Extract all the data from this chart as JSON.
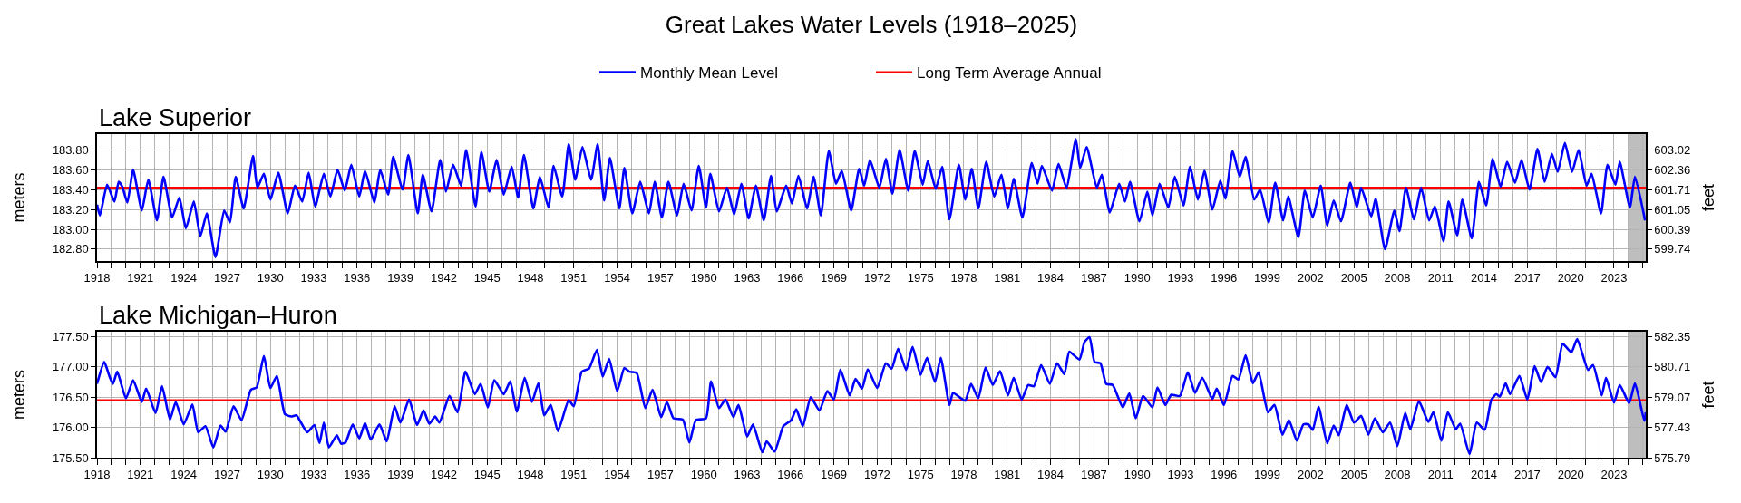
{
  "chart_data": [
    {
      "type": "line",
      "title": "Great Lakes Water Levels (1918–2025)",
      "subtitle": "Lake Superior",
      "ylabel": "meters",
      "y2label": "feet",
      "x": [
        1918,
        1918.2,
        1918.7,
        1919.2,
        1919.5,
        1919.75,
        1920.1,
        1920.5,
        1921.1,
        1921.55,
        1922.15,
        1922.6,
        1923.2,
        1923.7,
        1924.15,
        1924.7,
        1925.15,
        1925.6,
        1926.2,
        1926.8,
        1927.2,
        1927.6,
        1928.15,
        1928.8,
        1929.1,
        1929.55,
        1930,
        1930.55,
        1931.2,
        1931.7,
        1932.2,
        1932.65,
        1933.1,
        1933.7,
        1934.15,
        1934.65,
        1935.15,
        1935.6,
        1936.15,
        1936.55,
        1937.2,
        1937.6,
        1938.15,
        1938.5,
        1939.15,
        1939.55,
        1940.2,
        1940.55,
        1941.15,
        1941.75,
        1942.15,
        1942.65,
        1943.2,
        1943.55,
        1944.2,
        1944.6,
        1945.15,
        1945.65,
        1946.15,
        1946.7,
        1947.15,
        1947.55,
        1948.2,
        1948.65,
        1949.25,
        1949.6,
        1950.2,
        1950.65,
        1951.1,
        1951.6,
        1952.2,
        1952.65,
        1953.1,
        1953.5,
        1954.15,
        1954.5,
        1955.05,
        1955.6,
        1956.2,
        1956.6,
        1957.1,
        1957.55,
        1958.15,
        1958.6,
        1959.15,
        1959.65,
        1960.15,
        1960.45,
        1961.05,
        1961.6,
        1962.1,
        1962.6,
        1963.1,
        1963.6,
        1964.15,
        1964.65,
        1965.05,
        1965.7,
        1966.1,
        1966.55,
        1967.15,
        1967.6,
        1968.1,
        1968.65,
        1969.15,
        1969.55,
        1970.2,
        1970.75,
        1971.1,
        1971.5,
        1972.15,
        1972.6,
        1973.05,
        1973.55,
        1974.15,
        1974.6,
        1975.15,
        1975.5,
        1976.05,
        1976.5,
        1977,
        1977.65,
        1978.1,
        1978.55,
        1979,
        1979.55,
        1980.1,
        1980.6,
        1981.05,
        1981.45,
        1982.05,
        1982.7,
        1983.1,
        1983.4,
        1984.1,
        1984.55,
        1985.1,
        1985.75,
        1986.05,
        1986.5,
        1987.2,
        1987.55,
        1988.1,
        1988.75,
        1989.15,
        1989.5,
        1990.15,
        1990.7,
        1991.05,
        1991.55,
        1992.15,
        1992.6,
        1993.2,
        1993.65,
        1994.2,
        1994.65,
        1995.2,
        1995.75,
        1996.1,
        1996.6,
        1997.1,
        1997.5,
        1998.1,
        1998.5,
        1999.1,
        1999.55,
        2000.1,
        2000.45,
        2001.15,
        2001.6,
        2002.15,
        2002.7,
        2003.15,
        2003.6,
        2004.1,
        2004.75,
        2005.2,
        2005.5,
        2006.2,
        2006.5,
        2007.15,
        2007.8,
        2008.15,
        2008.6,
        2009.15,
        2009.65,
        2010.2,
        2010.6,
        2011.2,
        2011.55,
        2012.15,
        2012.5,
        2013.15,
        2013.65,
        2014.15,
        2014.6,
        2015.15,
        2015.6,
        2016.15,
        2016.6,
        2017.15,
        2017.7,
        2018.2,
        2018.7,
        2019.1,
        2019.6,
        2020.1,
        2020.55,
        2021.1,
        2021.45,
        2022.1,
        2022.55,
        2023.1,
        2023.4,
        2024.1,
        2024.45,
        2025.15
      ],
      "series": [
        {
          "name": "Monthly Mean Level",
          "color": "#0000ff",
          "values": [
            183.25,
            183.14,
            183.45,
            183.28,
            183.48,
            183.43,
            183.27,
            183.6,
            183.19,
            183.5,
            183.09,
            183.53,
            183.12,
            183.32,
            183.01,
            183.28,
            182.93,
            183.16,
            182.72,
            183.19,
            183.07,
            183.53,
            183.21,
            183.74,
            183.42,
            183.56,
            183.3,
            183.57,
            183.16,
            183.44,
            183.28,
            183.57,
            183.23,
            183.56,
            183.33,
            183.6,
            183.39,
            183.65,
            183.33,
            183.59,
            183.27,
            183.6,
            183.35,
            183.73,
            183.4,
            183.75,
            183.16,
            183.55,
            183.18,
            183.7,
            183.38,
            183.65,
            183.44,
            183.8,
            183.23,
            183.78,
            183.38,
            183.7,
            183.35,
            183.63,
            183.32,
            183.75,
            183.21,
            183.53,
            183.22,
            183.64,
            183.33,
            183.86,
            183.5,
            183.83,
            183.5,
            183.86,
            183.29,
            183.72,
            183.21,
            183.62,
            183.16,
            183.48,
            183.16,
            183.48,
            183.12,
            183.48,
            183.14,
            183.46,
            183.19,
            183.64,
            183.22,
            183.56,
            183.18,
            183.42,
            183.15,
            183.46,
            183.11,
            183.44,
            183.09,
            183.54,
            183.18,
            183.44,
            183.26,
            183.54,
            183.21,
            183.53,
            183.14,
            183.79,
            183.46,
            183.59,
            183.19,
            183.61,
            183.44,
            183.7,
            183.42,
            183.71,
            183.36,
            183.8,
            183.39,
            183.79,
            183.45,
            183.69,
            183.41,
            183.63,
            183.1,
            183.65,
            183.3,
            183.61,
            183.21,
            183.68,
            183.33,
            183.55,
            183.21,
            183.51,
            183.12,
            183.67,
            183.46,
            183.64,
            183.39,
            183.66,
            183.42,
            183.91,
            183.62,
            183.83,
            183.42,
            183.55,
            183.17,
            183.46,
            183.28,
            183.48,
            183.08,
            183.38,
            183.14,
            183.46,
            183.22,
            183.53,
            183.24,
            183.63,
            183.3,
            183.59,
            183.2,
            183.49,
            183.31,
            183.79,
            183.53,
            183.73,
            183.3,
            183.4,
            183.07,
            183.47,
            183.09,
            183.33,
            182.92,
            183.39,
            183.12,
            183.44,
            183.04,
            183.29,
            183.08,
            183.47,
            183.22,
            183.42,
            183.13,
            183.31,
            182.8,
            183.19,
            182.98,
            183.42,
            183.1,
            183.42,
            183.09,
            183.23,
            182.88,
            183.28,
            182.94,
            183.3,
            182.91,
            183.48,
            183.24,
            183.71,
            183.43,
            183.68,
            183.47,
            183.7,
            183.4,
            183.81,
            183.48,
            183.76,
            183.58,
            183.87,
            183.58,
            183.8,
            183.44,
            183.56,
            183.16,
            183.65,
            183.45,
            183.68,
            183.22,
            183.53,
            183.09
          ]
        }
      ],
      "xlim": [
        1918,
        2025.2
      ],
      "xticks": [
        1918,
        {
          "value": 1919,
          "label": null
        },
        {
          "value": 1920,
          "label": null
        },
        1921,
        {
          "value": 1922,
          "label": null
        },
        {
          "value": 1923,
          "label": null
        },
        1924,
        {
          "value": 1925,
          "label": null
        },
        {
          "value": 1926,
          "label": null
        },
        1927,
        {
          "value": 1928,
          "label": null
        },
        {
          "value": 1929,
          "label": null
        },
        1930,
        {
          "value": 1931,
          "label": null
        },
        {
          "value": 1932,
          "label": null
        },
        1933,
        {
          "value": 1934,
          "label": null
        },
        {
          "value": 1935,
          "label": null
        },
        1936,
        {
          "value": 1937,
          "label": null
        },
        {
          "value": 1938,
          "label": null
        },
        1939,
        {
          "value": 1940,
          "label": null
        },
        {
          "value": 1941,
          "label": null
        },
        1942,
        {
          "value": 1943,
          "label": null
        },
        {
          "value": 1944,
          "label": null
        },
        1945,
        {
          "value": 1946,
          "label": null
        },
        {
          "value": 1947,
          "label": null
        },
        1948,
        {
          "value": 1949,
          "label": null
        },
        {
          "value": 1950,
          "label": null
        },
        1951,
        {
          "value": 1952,
          "label": null
        },
        {
          "value": 1953,
          "label": null
        },
        1954,
        {
          "value": 1955,
          "label": null
        },
        {
          "value": 1956,
          "label": null
        },
        1957,
        {
          "value": 1958,
          "label": null
        },
        {
          "value": 1959,
          "label": null
        },
        1960,
        {
          "value": 1961,
          "label": null
        },
        {
          "value": 1962,
          "label": null
        },
        1963,
        {
          "value": 1964,
          "label": null
        },
        {
          "value": 1965,
          "label": null
        },
        1966,
        {
          "value": 1967,
          "label": null
        },
        {
          "value": 1968,
          "label": null
        },
        1969,
        {
          "value": 1970,
          "label": null
        },
        {
          "value": 1971,
          "label": null
        },
        1972,
        {
          "value": 1973,
          "label": null
        },
        {
          "value": 1974,
          "label": null
        },
        1975,
        {
          "value": 1976,
          "label": null
        },
        {
          "value": 1977,
          "label": null
        },
        1978,
        {
          "value": 1979,
          "label": null
        },
        {
          "value": 1980,
          "label": null
        },
        1981,
        {
          "value": 1982,
          "label": null
        },
        {
          "value": 1983,
          "label": null
        },
        1984,
        {
          "value": 1985,
          "label": null
        },
        {
          "value": 1986,
          "label": null
        },
        1987,
        {
          "value": 1988,
          "label": null
        },
        {
          "value": 1989,
          "label": null
        },
        1990,
        {
          "value": 1991,
          "label": null
        },
        {
          "value": 1992,
          "label": null
        },
        1993,
        {
          "value": 1994,
          "label": null
        },
        {
          "value": 1995,
          "label": null
        },
        1996,
        {
          "value": 1997,
          "label": null
        },
        {
          "value": 1998,
          "label": null
        },
        1999,
        {
          "value": 2000,
          "label": null
        },
        {
          "value": 2001,
          "label": null
        },
        2002,
        {
          "value": 2003,
          "label": null
        },
        {
          "value": 2004,
          "label": null
        },
        2005,
        {
          "value": 2006,
          "label": null
        },
        {
          "value": 2007,
          "label": null
        },
        2008,
        {
          "value": 2009,
          "label": null
        },
        {
          "value": 2010,
          "label": null
        },
        2011,
        {
          "value": 2012,
          "label": null
        },
        {
          "value": 2013,
          "label": null
        },
        2014,
        {
          "value": 2015,
          "label": null
        },
        {
          "value": 2016,
          "label": null
        },
        2017,
        {
          "value": 2018,
          "label": null
        },
        {
          "value": 2019,
          "label": null
        },
        2020,
        {
          "value": 2021,
          "label": null
        },
        {
          "value": 2022,
          "label": null
        },
        2023,
        {
          "value": 2024,
          "label": null
        },
        {
          "value": 2025,
          "label": null
        }
      ],
      "ylim": [
        182.68,
        183.96
      ],
      "yticks": [
        {
          "value": 182.8,
          "label": "182.80"
        },
        {
          "value": 183,
          "label": "183.00"
        },
        {
          "value": 183.2,
          "label": "183.20"
        },
        {
          "value": 183.4,
          "label": "183.40"
        },
        {
          "value": 183.6,
          "label": "183.60"
        },
        {
          "value": 183.8,
          "label": "183.80"
        }
      ],
      "y2lim": [
        599.34,
        603.54
      ],
      "y2ticks": [
        599.74,
        600.39,
        601.05,
        601.71,
        602.36,
        603.02
      ],
      "ref_lines": [
        {
          "axis": "y",
          "value": 183.42,
          "label": "Long Term Average Annual",
          "color": "#ff0000"
        }
      ],
      "bands": [
        {
          "axis": "x",
          "from": 2024,
          "to": 2025.2,
          "color": "#bebebe"
        }
      ],
      "grid": true,
      "legend": "top"
    },
    {
      "type": "line",
      "title": "Lake Michigan–Huron",
      "ylabel": "meters",
      "y2label": "feet",
      "x": [
        1918,
        1918.5,
        1918.85,
        1919.1,
        1919.4,
        1920,
        1920.5,
        1921.1,
        1921.4,
        1922.05,
        1922.5,
        1923.05,
        1923.45,
        1924,
        1924.6,
        1925,
        1925.5,
        1926.05,
        1926.55,
        1926.9,
        1927.45,
        1928,
        1928.65,
        1929.05,
        1929.55,
        1930,
        1930.45,
        1931,
        1931.45,
        1931.8,
        1932.55,
        1933.05,
        1933.4,
        1933.7,
        1934.05,
        1934.6,
        1934.9,
        1935.2,
        1935.7,
        1936.15,
        1936.55,
        1936.95,
        1937.55,
        1938.05,
        1938.6,
        1939,
        1939.6,
        1940.15,
        1940.6,
        1941,
        1941.4,
        1941.7,
        1942.4,
        1942.95,
        1943.5,
        1944.15,
        1944.55,
        1945.05,
        1945.5,
        1946.15,
        1946.6,
        1947.05,
        1947.6,
        1948.1,
        1948.55,
        1948.95,
        1949.4,
        1949.9,
        1950.65,
        1951,
        1951.55,
        1952.05,
        1952.6,
        1953,
        1953.45,
        1954,
        1954.5,
        1954.85,
        1955.35,
        1955.95,
        1956.45,
        1957.05,
        1957.45,
        1957.9,
        1958.55,
        1959,
        1959.45,
        1960.15,
        1960.5,
        1961.05,
        1961.5,
        1962.05,
        1962.4,
        1963,
        1963.4,
        1964.05,
        1964.35,
        1964.9,
        1965.5,
        1966.05,
        1966.4,
        1966.85,
        1967.4,
        1968,
        1968.55,
        1969,
        1969.45,
        1970.1,
        1970.5,
        1970.95,
        1971.35,
        1972,
        1972.6,
        1973,
        1973.45,
        1974,
        1974.45,
        1975,
        1975.45,
        1976,
        1976.4,
        1977,
        1977.25,
        1977.8,
        1978.1,
        1978.5,
        1979,
        1979.5,
        1980,
        1980.5,
        1981.05,
        1981.45,
        1982,
        1982.45,
        1982.85,
        1983.35,
        1983.95,
        1984.45,
        1984.95,
        1985.3,
        1986,
        1986.35,
        1986.7,
        1987.05,
        1987.45,
        1987.85,
        1988.3,
        1989,
        1989.45,
        1989.9,
        1990.4,
        1991.05,
        1991.4,
        1991.95,
        1992.35,
        1992.95,
        1993.5,
        1994,
        1994.5,
        1995.2,
        1995.5,
        1996,
        1996.6,
        1997,
        1997.5,
        1998,
        1998.4,
        1999.05,
        1999.5,
        2000.05,
        2000.5,
        2001.05,
        2001.5,
        2001.85,
        2002.15,
        2002.55,
        2003.15,
        2003.6,
        2003.95,
        2004.5,
        2005,
        2005.5,
        2006,
        2006.45,
        2007,
        2007.5,
        2008,
        2008.55,
        2008.9,
        2009.5,
        2010.15,
        2010.5,
        2011.05,
        2011.5,
        2012.05,
        2012.35,
        2013,
        2013.5,
        2014.05,
        2014.5,
        2014.85,
        2015.1,
        2015.5,
        2015.8,
        2016.45,
        2017,
        2017.5,
        2017.95,
        2018.4,
        2018.95,
        2019.45,
        2020.05,
        2020.45,
        2021.2,
        2021.55,
        2022.15,
        2022.45,
        2023,
        2023.4,
        2024.05,
        2024.45,
        2025.1,
        2025.2
      ],
      "series": [
        {
          "color": "#0000ff",
          "values": [
            176.72,
            177.08,
            176.85,
            176.72,
            176.92,
            176.48,
            176.78,
            176.42,
            176.64,
            176.24,
            176.68,
            176.13,
            176.42,
            176.05,
            176.38,
            175.92,
            176.02,
            175.67,
            176.03,
            175.93,
            176.35,
            176.12,
            176.62,
            176.66,
            177.18,
            176.65,
            176.85,
            176.22,
            176.18,
            176.2,
            175.92,
            176.04,
            175.74,
            176.08,
            175.67,
            175.87,
            175.73,
            175.75,
            176.05,
            175.82,
            176.07,
            175.8,
            176.05,
            175.77,
            176.35,
            176.08,
            176.46,
            176.04,
            176.28,
            176.06,
            176.18,
            176.08,
            176.52,
            176.25,
            176.92,
            176.55,
            176.72,
            176.33,
            176.78,
            176.55,
            176.76,
            176.26,
            176.82,
            176.42,
            176.73,
            176.2,
            176.37,
            175.94,
            176.45,
            176.35,
            176.92,
            176.97,
            177.28,
            176.84,
            177.13,
            176.6,
            176.98,
            176.92,
            176.9,
            176.32,
            176.62,
            176.17,
            176.42,
            176.15,
            176.13,
            175.75,
            176.12,
            176.15,
            176.76,
            176.32,
            176.46,
            176.17,
            176.37,
            175.85,
            176.05,
            175.59,
            175.77,
            175.6,
            176.02,
            176.12,
            176.3,
            176.02,
            176.5,
            176.28,
            176.6,
            176.46,
            176.95,
            176.53,
            176.8,
            176.64,
            176.96,
            176.65,
            177.06,
            176.97,
            177.3,
            176.95,
            177.33,
            176.87,
            177.15,
            176.75,
            177.15,
            176.37,
            176.57,
            176.48,
            176.44,
            176.72,
            176.48,
            176.99,
            176.7,
            176.93,
            176.53,
            176.82,
            176.46,
            176.7,
            176.68,
            177.03,
            176.72,
            177.06,
            176.88,
            177.25,
            177.12,
            177.41,
            177.49,
            177.08,
            177.06,
            176.72,
            176.7,
            176.33,
            176.56,
            176.15,
            176.52,
            176.33,
            176.66,
            176.37,
            176.54,
            176.52,
            176.91,
            176.57,
            176.82,
            176.47,
            176.64,
            176.37,
            176.85,
            176.79,
            177.19,
            176.73,
            176.91,
            176.25,
            176.37,
            175.88,
            176.12,
            175.78,
            176.05,
            176.05,
            175.96,
            176.34,
            175.74,
            176.03,
            175.87,
            176.37,
            176.08,
            176.19,
            175.88,
            176.15,
            175.92,
            176.08,
            175.69,
            176.24,
            175.97,
            176.43,
            176.09,
            176.25,
            175.78,
            176.25,
            175.97,
            176.06,
            175.56,
            176.08,
            175.96,
            176.45,
            176.55,
            176.51,
            176.73,
            176.55,
            176.85,
            176.46,
            177.01,
            176.75,
            177.0,
            176.83,
            177.38,
            177.24,
            177.46,
            176.95,
            177.03,
            176.53,
            176.82,
            176.41,
            176.7,
            176.4,
            176.73,
            176.11,
            176.25
          ]
        }
      ],
      "xlim": [
        1918,
        2025.2
      ],
      "xticks": [
        1918,
        {
          "value": 1919,
          "label": null
        },
        {
          "value": 1920,
          "label": null
        },
        1921,
        {
          "value": 1922,
          "label": null
        },
        {
          "value": 1923,
          "label": null
        },
        1924,
        {
          "value": 1925,
          "label": null
        },
        {
          "value": 1926,
          "label": null
        },
        1927,
        {
          "value": 1928,
          "label": null
        },
        {
          "value": 1929,
          "label": null
        },
        1930,
        {
          "value": 1931,
          "label": null
        },
        {
          "value": 1932,
          "label": null
        },
        1933,
        {
          "value": 1934,
          "label": null
        },
        {
          "value": 1935,
          "label": null
        },
        1936,
        {
          "value": 1937,
          "label": null
        },
        {
          "value": 1938,
          "label": null
        },
        1939,
        {
          "value": 1940,
          "label": null
        },
        {
          "value": 1941,
          "label": null
        },
        1942,
        {
          "value": 1943,
          "label": null
        },
        {
          "value": 1944,
          "label": null
        },
        1945,
        {
          "value": 1946,
          "label": null
        },
        {
          "value": 1947,
          "label": null
        },
        1948,
        {
          "value": 1949,
          "label": null
        },
        {
          "value": 1950,
          "label": null
        },
        1951,
        {
          "value": 1952,
          "label": null
        },
        {
          "value": 1953,
          "label": null
        },
        1954,
        {
          "value": 1955,
          "label": null
        },
        {
          "value": 1956,
          "label": null
        },
        1957,
        {
          "value": 1958,
          "label": null
        },
        {
          "value": 1959,
          "label": null
        },
        1960,
        {
          "value": 1961,
          "label": null
        },
        {
          "value": 1962,
          "label": null
        },
        1963,
        {
          "value": 1964,
          "label": null
        },
        {
          "value": 1965,
          "label": null
        },
        1966,
        {
          "value": 1967,
          "label": null
        },
        {
          "value": 1968,
          "label": null
        },
        1969,
        {
          "value": 1970,
          "label": null
        },
        {
          "value": 1971,
          "label": null
        },
        1972,
        {
          "value": 1973,
          "label": null
        },
        {
          "value": 1974,
          "label": null
        },
        1975,
        {
          "value": 1976,
          "label": null
        },
        {
          "value": 1977,
          "label": null
        },
        1978,
        {
          "value": 1979,
          "label": null
        },
        {
          "value": 1980,
          "label": null
        },
        1981,
        {
          "value": 1982,
          "label": null
        },
        {
          "value": 1983,
          "label": null
        },
        1984,
        {
          "value": 1985,
          "label": null
        },
        {
          "value": 1986,
          "label": null
        },
        1987,
        {
          "value": 1988,
          "label": null
        },
        {
          "value": 1989,
          "label": null
        },
        1990,
        {
          "value": 1991,
          "label": null
        },
        {
          "value": 1992,
          "label": null
        },
        1993,
        {
          "value": 1994,
          "label": null
        },
        {
          "value": 1995,
          "label": null
        },
        1996,
        {
          "value": 1997,
          "label": null
        },
        {
          "value": 1998,
          "label": null
        },
        1999,
        {
          "value": 2000,
          "label": null
        },
        {
          "value": 2001,
          "label": null
        },
        2002,
        {
          "value": 2003,
          "label": null
        },
        {
          "value": 2004,
          "label": null
        },
        2005,
        {
          "value": 2006,
          "label": null
        },
        {
          "value": 2007,
          "label": null
        },
        2008,
        {
          "value": 2009,
          "label": null
        },
        {
          "value": 2010,
          "label": null
        },
        2011,
        {
          "value": 2012,
          "label": null
        },
        {
          "value": 2013,
          "label": null
        },
        2014,
        {
          "value": 2015,
          "label": null
        },
        {
          "value": 2016,
          "label": null
        },
        2017,
        {
          "value": 2018,
          "label": null
        },
        {
          "value": 2019,
          "label": null
        },
        2020,
        {
          "value": 2021,
          "label": null
        },
        {
          "value": 2022,
          "label": null
        },
        2023,
        {
          "value": 2024,
          "label": null
        },
        {
          "value": 2025,
          "label": null
        }
      ],
      "ylim": [
        175.5,
        177.58
      ],
      "yticks": [
        {
          "value": 175.5,
          "label": "175.50"
        },
        {
          "value": 176,
          "label": "176.00"
        },
        {
          "value": 176.5,
          "label": "176.50"
        },
        {
          "value": 177,
          "label": "177.00"
        },
        {
          "value": 177.5,
          "label": "177.50"
        }
      ],
      "y2lim": [
        575.79,
        582.61
      ],
      "y2ticks": [
        575.79,
        577.43,
        579.07,
        580.71,
        582.35
      ],
      "ref_lines": [
        {
          "axis": "y",
          "value": 176.45,
          "color": "#ff0000"
        }
      ],
      "bands": [
        {
          "axis": "x",
          "from": 2024,
          "to": 2025.2,
          "color": "#bebebe"
        }
      ],
      "grid": true
    }
  ]
}
